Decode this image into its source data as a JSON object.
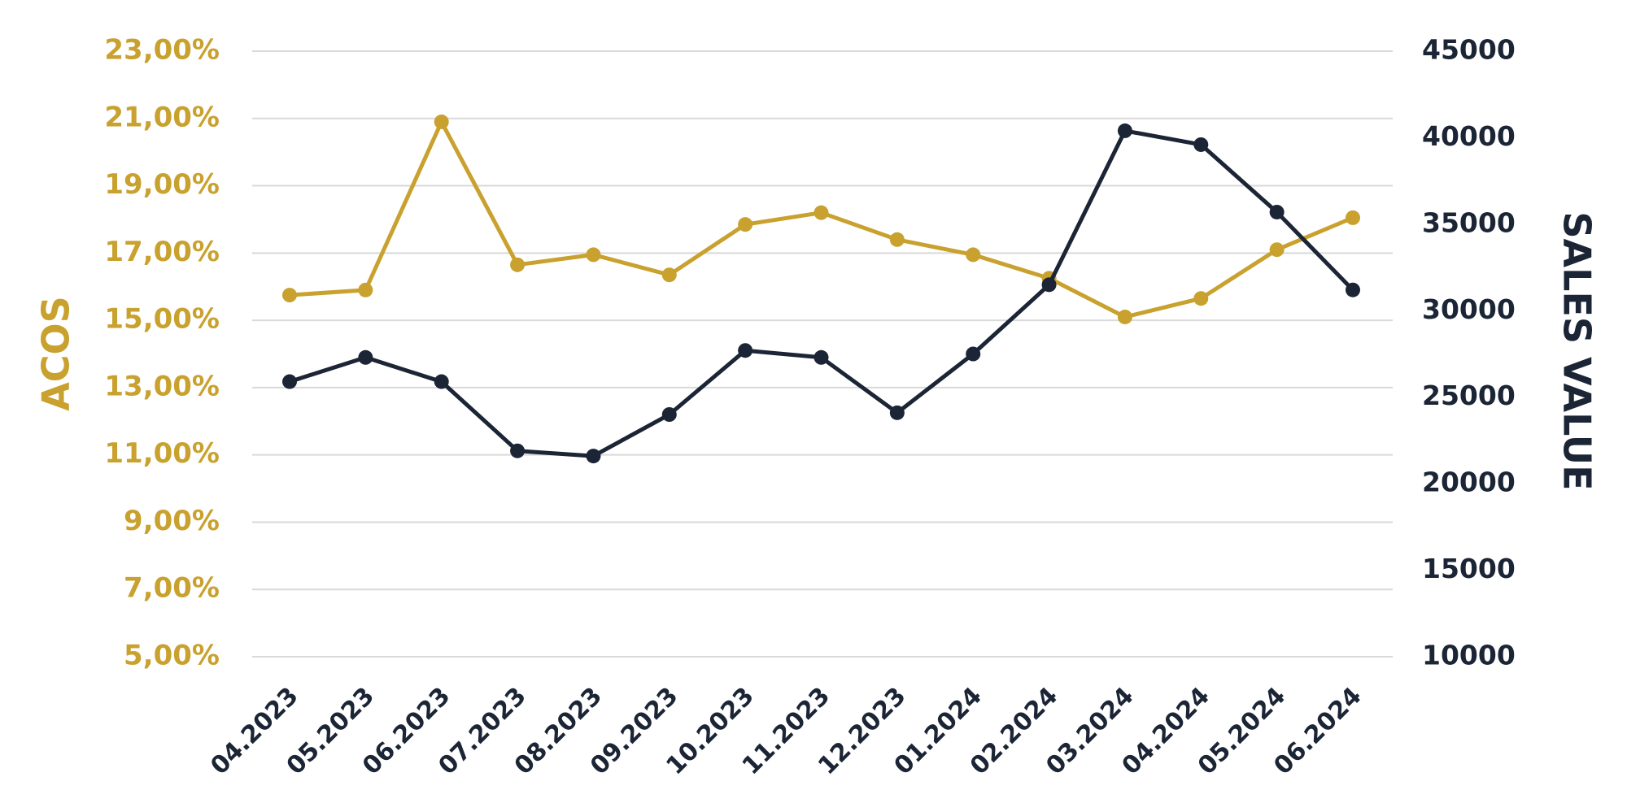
{
  "colors": {
    "acos": "#C9A12E",
    "sales": "#1B2535",
    "grid": "#D9D9D9",
    "background": "#FFFFFF"
  },
  "chart_data": {
    "type": "line",
    "title": "",
    "xlabel": "",
    "ylabel_left": "ACOS",
    "ylabel_right": "SALES VALUE",
    "grid": true,
    "legend": "none",
    "categories": [
      "04.2023",
      "05.2023",
      "06.2023",
      "07.2023",
      "08.2023",
      "09.2023",
      "10.2023",
      "11.2023",
      "12.2023",
      "01.2024",
      "02.2024",
      "03.2024",
      "04.2024",
      "05.2024",
      "06.2024"
    ],
    "y_left": {
      "ylim": [
        5,
        23
      ],
      "ticks": [
        5,
        7,
        9,
        11,
        13,
        15,
        17,
        19,
        21,
        23
      ],
      "tick_labels": [
        "5,00%",
        "7,00%",
        "9,00%",
        "11,00%",
        "13,00%",
        "15,00%",
        "17,00%",
        "19,00%",
        "21,00%",
        "23,00%"
      ]
    },
    "y_right": {
      "ylim": [
        10000,
        45000
      ],
      "ticks": [
        10000,
        15000,
        20000,
        25000,
        30000,
        35000,
        40000,
        45000
      ],
      "tick_labels": [
        "10000",
        "15000",
        "20000",
        "25000",
        "30000",
        "35000",
        "40000",
        "45000"
      ]
    },
    "series": [
      {
        "name": "ACOS",
        "axis": "left",
        "color": "#C9A12E",
        "values": [
          15.75,
          15.9,
          20.9,
          16.65,
          16.95,
          16.35,
          17.85,
          18.2,
          17.4,
          16.95,
          16.25,
          15.1,
          15.65,
          17.1,
          18.05
        ]
      },
      {
        "name": "SALES VALUE",
        "axis": "right",
        "color": "#1B2535",
        "values": [
          25900,
          27300,
          25900,
          21900,
          21600,
          24000,
          27700,
          27300,
          24100,
          27500,
          31500,
          40400,
          39600,
          35700,
          31200
        ]
      }
    ]
  }
}
